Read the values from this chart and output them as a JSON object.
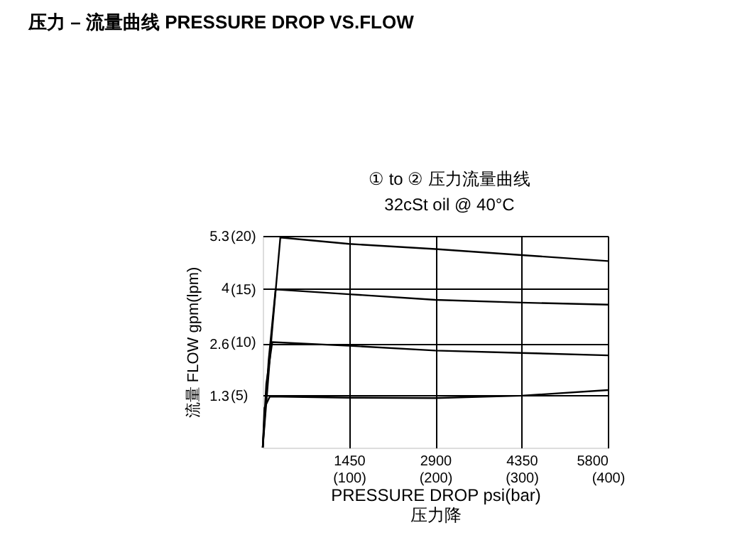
{
  "chart_data": {
    "type": "line",
    "title": "压力 – 流量曲线 PRESSURE DROP VS.FLOW",
    "subtitle": "① to ② 压力流量曲线",
    "annotations": [
      "32cSt oil @ 40°C"
    ],
    "xlabel": "PRESSURE  DROP psi(bar)\n压力降",
    "ylabel": "流量 FLOW  gpm(lpm)",
    "xlim": [
      0,
      5800
    ],
    "ylim": [
      0,
      5.3
    ],
    "xticks": [
      1450,
      2900,
      4350,
      5800
    ],
    "yticks": [
      1.3,
      2.6,
      4,
      5.3
    ],
    "x2lim": [
      0,
      400
    ],
    "x2ticks": [
      {
        "value": 100,
        "label": "(100)"
      },
      {
        "value": 200,
        "label": "(200)"
      },
      {
        "value": 300,
        "label": "(300)"
      },
      {
        "value": 400,
        "label": "(400)"
      }
    ],
    "y2lim": [
      0,
      20
    ],
    "y2ticks": [
      {
        "value": 5,
        "label": "(5)"
      },
      {
        "value": 10,
        "label": "(10)"
      },
      {
        "value": 15,
        "label": "(15)"
      },
      {
        "value": 20,
        "label": "(20)"
      }
    ],
    "grid": true,
    "legend": false,
    "marker": "none",
    "line_style": "solid",
    "series": [
      {
        "color": "#000000",
        "x": [
          0,
          150,
          296,
          1450,
          2900,
          4350,
          5800
        ],
        "values": [
          0,
          2.8,
          5.26,
          5.1,
          4.97,
          4.82,
          4.67
        ]
      },
      {
        "color": "#000000",
        "x": [
          0,
          100,
          216,
          1450,
          2900,
          4350,
          5800
        ],
        "values": [
          0,
          2.2,
          3.96,
          3.84,
          3.7,
          3.63,
          3.58
        ]
      },
      {
        "color": "#000000",
        "x": [
          0,
          60,
          160,
          1450,
          2900,
          4350,
          5800
        ],
        "values": [
          0,
          1.6,
          2.64,
          2.55,
          2.43,
          2.37,
          2.31
        ]
      },
      {
        "color": "#000000",
        "x": [
          0,
          30,
          120,
          1450,
          2900,
          4350,
          5800
        ],
        "values": [
          0,
          1.0,
          1.28,
          1.25,
          1.24,
          1.3,
          1.44
        ]
      }
    ]
  }
}
